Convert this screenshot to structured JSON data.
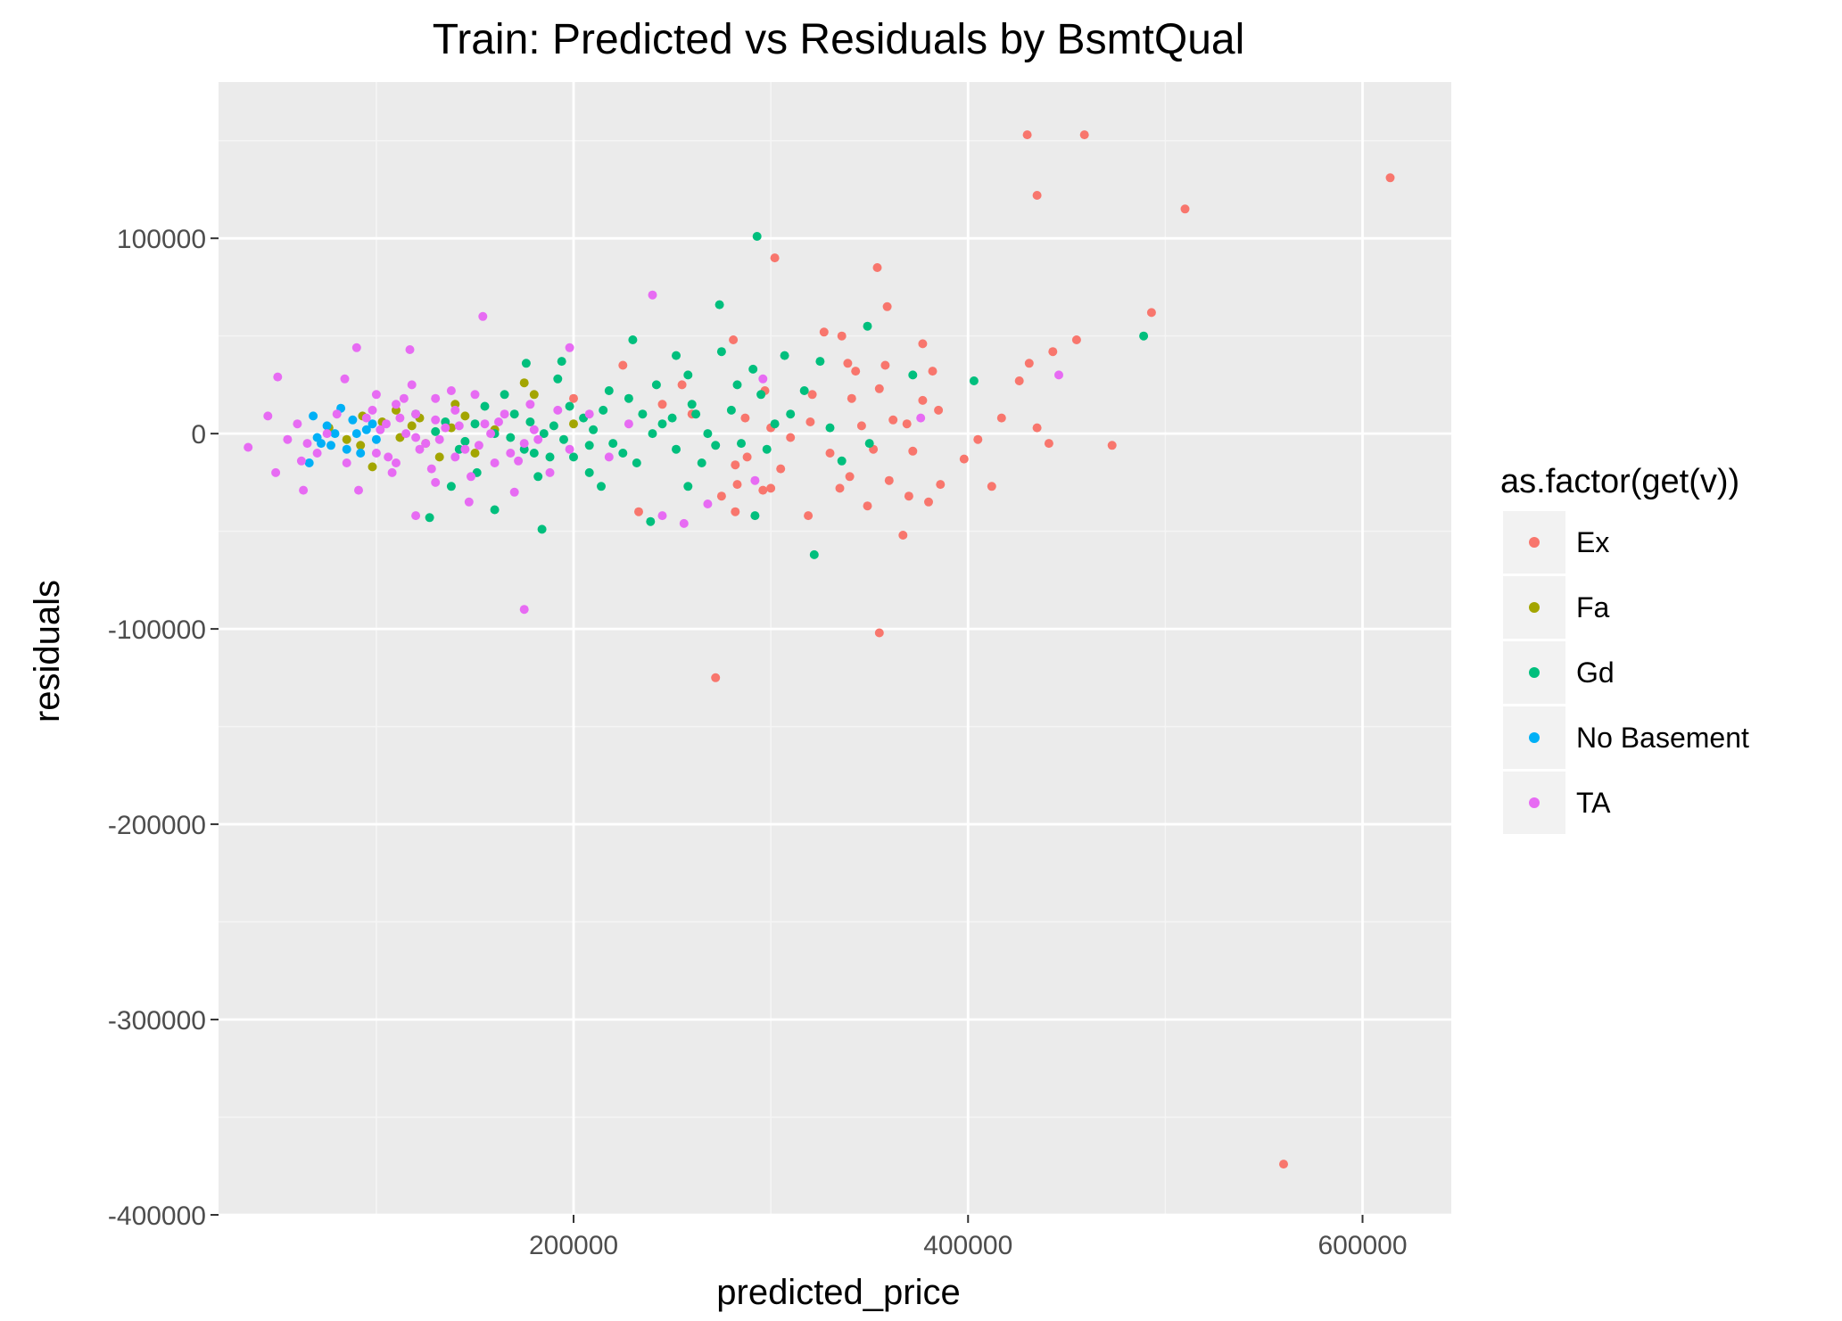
{
  "chart_data": {
    "type": "scatter",
    "title": "Train: Predicted vs Residuals by BsmtQual",
    "xlabel": "predicted_price",
    "ylabel": "residuals",
    "xlim": [
      20000,
      645000
    ],
    "ylim": [
      -400000,
      180000
    ],
    "x_ticks": [
      200000,
      400000,
      600000
    ],
    "x_tick_labels": [
      "200000",
      "400000",
      "600000"
    ],
    "y_ticks": [
      -400000,
      -300000,
      -200000,
      -100000,
      0,
      100000
    ],
    "y_tick_labels": [
      "-400000",
      "-300000",
      "-200000",
      "-100000",
      "0",
      "100000"
    ],
    "grid": true,
    "legend": {
      "title": "as.factor(get(v))",
      "position": "right"
    },
    "series": [
      {
        "name": "Ex",
        "color": "#F8766D",
        "points": [
          [
            430000,
            153000
          ],
          [
            459000,
            153000
          ],
          [
            435000,
            122000
          ],
          [
            510000,
            115000
          ],
          [
            614000,
            131000
          ],
          [
            302000,
            90000
          ],
          [
            354000,
            85000
          ],
          [
            359000,
            65000
          ],
          [
            493000,
            62000
          ],
          [
            327000,
            52000
          ],
          [
            336000,
            50000
          ],
          [
            281000,
            48000
          ],
          [
            377000,
            46000
          ],
          [
            455000,
            48000
          ],
          [
            443000,
            42000
          ],
          [
            431000,
            36000
          ],
          [
            339000,
            36000
          ],
          [
            343000,
            32000
          ],
          [
            382000,
            32000
          ],
          [
            358000,
            35000
          ],
          [
            426000,
            27000
          ],
          [
            297000,
            22000
          ],
          [
            355000,
            23000
          ],
          [
            321000,
            20000
          ],
          [
            341000,
            18000
          ],
          [
            377000,
            17000
          ],
          [
            385000,
            12000
          ],
          [
            417000,
            8000
          ],
          [
            362000,
            7000
          ],
          [
            369000,
            5000
          ],
          [
            287000,
            8000
          ],
          [
            300000,
            3000
          ],
          [
            320000,
            6000
          ],
          [
            346000,
            4000
          ],
          [
            435000,
            3000
          ],
          [
            405000,
            -3000
          ],
          [
            441000,
            -5000
          ],
          [
            473000,
            -6000
          ],
          [
            372000,
            -9000
          ],
          [
            352000,
            -8000
          ],
          [
            330000,
            -10000
          ],
          [
            398000,
            -13000
          ],
          [
            288000,
            -12000
          ],
          [
            305000,
            -18000
          ],
          [
            340000,
            -22000
          ],
          [
            360000,
            -24000
          ],
          [
            386000,
            -26000
          ],
          [
            412000,
            -27000
          ],
          [
            300000,
            -28000
          ],
          [
            283000,
            -26000
          ],
          [
            296000,
            -29000
          ],
          [
            335000,
            -28000
          ],
          [
            370000,
            -32000
          ],
          [
            380000,
            -35000
          ],
          [
            349000,
            -37000
          ],
          [
            282000,
            -40000
          ],
          [
            319000,
            -42000
          ],
          [
            367000,
            -52000
          ],
          [
            355000,
            -102000
          ],
          [
            272000,
            -125000
          ],
          [
            225000,
            35000
          ],
          [
            255000,
            25000
          ],
          [
            200000,
            18000
          ],
          [
            245000,
            15000
          ],
          [
            233000,
            -40000
          ],
          [
            282000,
            -16000
          ],
          [
            560000,
            -374000
          ],
          [
            260000,
            10000
          ],
          [
            310000,
            -2000
          ],
          [
            275000,
            -32000
          ]
        ]
      },
      {
        "name": "Fa",
        "color": "#A3A500",
        "points": [
          [
            93000,
            9000
          ],
          [
            98000,
            -17000
          ],
          [
            118000,
            4000
          ],
          [
            145000,
            9000
          ],
          [
            175000,
            26000
          ],
          [
            110000,
            12000
          ],
          [
            125000,
            -5000
          ],
          [
            85000,
            -3000
          ],
          [
            138000,
            3000
          ],
          [
            150000,
            -10000
          ],
          [
            103000,
            6000
          ],
          [
            122000,
            8000
          ],
          [
            160000,
            2000
          ],
          [
            132000,
            -12000
          ],
          [
            92000,
            -6000
          ],
          [
            180000,
            20000
          ],
          [
            112000,
            -2000
          ],
          [
            200000,
            5000
          ],
          [
            76000,
            3000
          ],
          [
            140000,
            15000
          ]
        ]
      },
      {
        "name": "Gd",
        "color": "#00BF7D",
        "points": [
          [
            293000,
            101000
          ],
          [
            274000,
            66000
          ],
          [
            349000,
            55000
          ],
          [
            489000,
            50000
          ],
          [
            403000,
            27000
          ],
          [
            275000,
            42000
          ],
          [
            307000,
            40000
          ],
          [
            252000,
            40000
          ],
          [
            230000,
            48000
          ],
          [
            194000,
            37000
          ],
          [
            176000,
            36000
          ],
          [
            258000,
            30000
          ],
          [
            291000,
            33000
          ],
          [
            317000,
            22000
          ],
          [
            325000,
            37000
          ],
          [
            372000,
            30000
          ],
          [
            350000,
            -5000
          ],
          [
            336000,
            -14000
          ],
          [
            322000,
            -62000
          ],
          [
            292000,
            -42000
          ],
          [
            239000,
            -45000
          ],
          [
            127000,
            -43000
          ],
          [
            184000,
            -49000
          ],
          [
            160000,
            -39000
          ],
          [
            138000,
            -27000
          ],
          [
            258000,
            -27000
          ],
          [
            214000,
            -27000
          ],
          [
            182000,
            -22000
          ],
          [
            151000,
            -20000
          ],
          [
            215000,
            12000
          ],
          [
            235000,
            10000
          ],
          [
            220000,
            -5000
          ],
          [
            245000,
            5000
          ],
          [
            205000,
            8000
          ],
          [
            190000,
            4000
          ],
          [
            175000,
            -8000
          ],
          [
            200000,
            -12000
          ],
          [
            228000,
            18000
          ],
          [
            260000,
            15000
          ],
          [
            268000,
            0
          ],
          [
            280000,
            12000
          ],
          [
            165000,
            20000
          ],
          [
            150000,
            5000
          ],
          [
            170000,
            10000
          ],
          [
            185000,
            0
          ],
          [
            195000,
            -3000
          ],
          [
            210000,
            2000
          ],
          [
            225000,
            -10000
          ],
          [
            240000,
            0
          ],
          [
            250000,
            8000
          ],
          [
            265000,
            -15000
          ],
          [
            285000,
            -5000
          ],
          [
            295000,
            20000
          ],
          [
            302000,
            5000
          ],
          [
            180000,
            -10000
          ],
          [
            160000,
            0
          ],
          [
            155000,
            14000
          ],
          [
            145000,
            -4000
          ],
          [
            135000,
            6000
          ],
          [
            120000,
            10000
          ],
          [
            130000,
            1000
          ],
          [
            142000,
            -8000
          ],
          [
            168000,
            -2000
          ],
          [
            178000,
            6000
          ],
          [
            188000,
            -12000
          ],
          [
            198000,
            14000
          ],
          [
            208000,
            -6000
          ],
          [
            218000,
            22000
          ],
          [
            232000,
            -15000
          ],
          [
            242000,
            25000
          ],
          [
            252000,
            -8000
          ],
          [
            262000,
            10000
          ],
          [
            272000,
            -6000
          ],
          [
            283000,
            25000
          ],
          [
            298000,
            -8000
          ],
          [
            310000,
            10000
          ],
          [
            330000,
            3000
          ],
          [
            208000,
            -20000
          ],
          [
            192000,
            28000
          ]
        ]
      },
      {
        "name": "No Basement",
        "color": "#00B0F6",
        "points": [
          [
            68000,
            9000
          ],
          [
            82000,
            13000
          ],
          [
            75000,
            4000
          ],
          [
            90000,
            0
          ],
          [
            72000,
            -5000
          ],
          [
            85000,
            -8000
          ],
          [
            95000,
            2000
          ],
          [
            66000,
            -15000
          ],
          [
            79000,
            0
          ],
          [
            88000,
            7000
          ],
          [
            100000,
            -3000
          ],
          [
            92000,
            -10000
          ],
          [
            70000,
            -2000
          ],
          [
            77000,
            -6000
          ],
          [
            98000,
            5000
          ]
        ]
      },
      {
        "name": "TA",
        "color": "#E76BF3",
        "points": [
          [
            240000,
            71000
          ],
          [
            154000,
            60000
          ],
          [
            90000,
            44000
          ],
          [
            117000,
            43000
          ],
          [
            198000,
            44000
          ],
          [
            50000,
            29000
          ],
          [
            84000,
            28000
          ],
          [
            446000,
            30000
          ],
          [
            296000,
            28000
          ],
          [
            376000,
            8000
          ],
          [
            45000,
            9000
          ],
          [
            35000,
            -7000
          ],
          [
            62000,
            -14000
          ],
          [
            49000,
            -20000
          ],
          [
            63000,
            -29000
          ],
          [
            91000,
            -29000
          ],
          [
            120000,
            -42000
          ],
          [
            147000,
            -35000
          ],
          [
            245000,
            -42000
          ],
          [
            256000,
            -46000
          ],
          [
            268000,
            -36000
          ],
          [
            292000,
            -24000
          ],
          [
            175000,
            -90000
          ],
          [
            170000,
            -30000
          ],
          [
            130000,
            -25000
          ],
          [
            100000,
            20000
          ],
          [
            110000,
            15000
          ],
          [
            120000,
            10000
          ],
          [
            130000,
            18000
          ],
          [
            140000,
            12000
          ],
          [
            105000,
            5000
          ],
          [
            115000,
            0
          ],
          [
            125000,
            -5000
          ],
          [
            135000,
            3000
          ],
          [
            145000,
            -8000
          ],
          [
            100000,
            -10000
          ],
          [
            110000,
            -15000
          ],
          [
            120000,
            -2000
          ],
          [
            130000,
            7000
          ],
          [
            140000,
            -12000
          ],
          [
            95000,
            8000
          ],
          [
            155000,
            5000
          ],
          [
            160000,
            -15000
          ],
          [
            165000,
            10000
          ],
          [
            175000,
            -5000
          ],
          [
            180000,
            2000
          ],
          [
            150000,
            20000
          ],
          [
            108000,
            -20000
          ],
          [
            118000,
            25000
          ],
          [
            128000,
            -18000
          ],
          [
            138000,
            22000
          ],
          [
            148000,
            -22000
          ],
          [
            158000,
            0
          ],
          [
            168000,
            -10000
          ],
          [
            178000,
            15000
          ],
          [
            188000,
            -20000
          ],
          [
            198000,
            -8000
          ],
          [
            208000,
            10000
          ],
          [
            218000,
            -12000
          ],
          [
            228000,
            5000
          ],
          [
            102000,
            2000
          ],
          [
            112000,
            8000
          ],
          [
            122000,
            -8000
          ],
          [
            132000,
            -3000
          ],
          [
            142000,
            4000
          ],
          [
            152000,
            -6000
          ],
          [
            162000,
            6000
          ],
          [
            172000,
            -14000
          ],
          [
            182000,
            -3000
          ],
          [
            192000,
            12000
          ],
          [
            75000,
            0
          ],
          [
            80000,
            10000
          ],
          [
            85000,
            -15000
          ],
          [
            70000,
            -10000
          ],
          [
            60000,
            5000
          ],
          [
            65000,
            -5000
          ],
          [
            55000,
            -3000
          ],
          [
            98000,
            12000
          ],
          [
            106000,
            -12000
          ],
          [
            114000,
            18000
          ]
        ]
      }
    ]
  }
}
